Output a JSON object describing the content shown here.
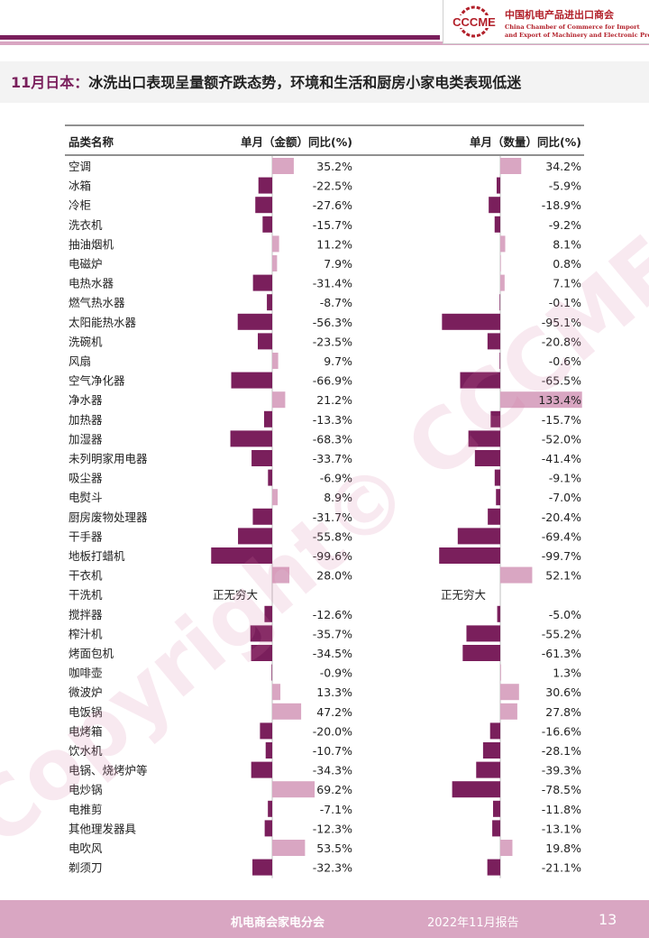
{
  "header": {
    "org_cn": "中国机电产品进出口商会",
    "org_en_line1": "China Chamber of Commerce for Import",
    "org_en_line2": "and Export of Machinery and Electronic Products",
    "logo_text": "CCCME",
    "title_accent": "11月日本：",
    "title_rest": "冰洗出口表现呈量额齐跌态势，环境和生活和厨房小家电类表现低迷"
  },
  "watermark": "Copyright© CCCME",
  "colors": {
    "accent_dark": "#7a1f5c",
    "accent_light": "#d9a6c2",
    "brand_red": "#b2202a"
  },
  "chart_data": {
    "type": "bar",
    "orientation": "horizontal",
    "columns": [
      "品类名称",
      "单月（金额）同比(%)",
      "单月（数量）同比(%)"
    ],
    "note_infinite": "正无穷大",
    "colors": {
      "positive": "#d9a6c2",
      "negative": "#7a1f5c"
    },
    "categories": [
      "空调",
      "冰箱",
      "冷柜",
      "洗衣机",
      "抽油烟机",
      "电磁炉",
      "电热水器",
      "燃气热水器",
      "太阳能热水器",
      "洗碗机",
      "风扇",
      "空气净化器",
      "净水器",
      "加热器",
      "加湿器",
      "未列明家用电器",
      "吸尘器",
      "电熨斗",
      "厨房废物处理器",
      "干手器",
      "地板打蜡机",
      "干衣机",
      "干洗机",
      "搅拌器",
      "榨汁机",
      "烤面包机",
      "咖啡壶",
      "微波炉",
      "电饭锅",
      "电烤箱",
      "饮水机",
      "电锅、烧烤炉等",
      "电炒锅",
      "电推剪",
      "其他理发器具",
      "电吹风",
      "剃须刀"
    ],
    "series": [
      {
        "name": "单月（金额）同比(%)",
        "values": [
          35.2,
          -22.5,
          -27.6,
          -15.7,
          11.2,
          7.9,
          -31.4,
          -8.7,
          -56.3,
          -23.5,
          9.7,
          -66.9,
          21.2,
          -13.3,
          -68.3,
          -33.7,
          -6.9,
          8.9,
          -31.7,
          -55.8,
          -99.6,
          28.0,
          null,
          -12.6,
          -35.7,
          -34.5,
          -0.9,
          13.3,
          47.2,
          -20.0,
          -10.7,
          -34.3,
          69.2,
          -7.1,
          -12.3,
          53.5,
          -32.3
        ],
        "labels": [
          "35.2%",
          "-22.5%",
          "-27.6%",
          "-15.7%",
          "11.2%",
          "7.9%",
          "-31.4%",
          "-8.7%",
          "-56.3%",
          "-23.5%",
          "9.7%",
          "-66.9%",
          "21.2%",
          "-13.3%",
          "-68.3%",
          "-33.7%",
          "-6.9%",
          "8.9%",
          "-31.7%",
          "-55.8%",
          "-99.6%",
          "28.0%",
          "正无穷大",
          "-12.6%",
          "-35.7%",
          "-34.5%",
          "-0.9%",
          "13.3%",
          "47.2%",
          "-20.0%",
          "-10.7%",
          "-34.3%",
          "69.2%",
          "-7.1%",
          "-12.3%",
          "53.5%",
          "-32.3%"
        ]
      },
      {
        "name": "单月（数量）同比(%)",
        "values": [
          34.2,
          -5.9,
          -18.9,
          -9.2,
          8.1,
          0.8,
          7.1,
          -0.1,
          -95.1,
          -20.8,
          -0.6,
          -65.5,
          133.4,
          -15.7,
          -52.0,
          -41.4,
          -9.1,
          -7.0,
          -20.4,
          -69.4,
          -99.7,
          52.1,
          null,
          -5.0,
          -55.2,
          -61.3,
          1.3,
          30.6,
          27.8,
          -16.6,
          -28.1,
          -39.3,
          -78.5,
          -11.8,
          -13.1,
          19.8,
          -21.1
        ],
        "labels": [
          "34.2%",
          "-5.9%",
          "-18.9%",
          "-9.2%",
          "8.1%",
          "0.8%",
          "7.1%",
          "-0.1%",
          "-95.1%",
          "-20.8%",
          "-0.6%",
          "-65.5%",
          "133.4%",
          "-15.7%",
          "-52.0%",
          "-41.4%",
          "-9.1%",
          "-7.0%",
          "-20.4%",
          "-69.4%",
          "-99.7%",
          "52.1%",
          "正无穷大",
          "-5.0%",
          "-55.2%",
          "-61.3%",
          "1.3%",
          "30.6%",
          "27.8%",
          "-16.6%",
          "-28.1%",
          "-39.3%",
          "-78.5%",
          "-11.8%",
          "-13.1%",
          "19.8%",
          "-21.1%"
        ]
      }
    ]
  },
  "footer": {
    "org": "机电商会家电分会",
    "date": "2022年11月报告",
    "page": "13"
  }
}
